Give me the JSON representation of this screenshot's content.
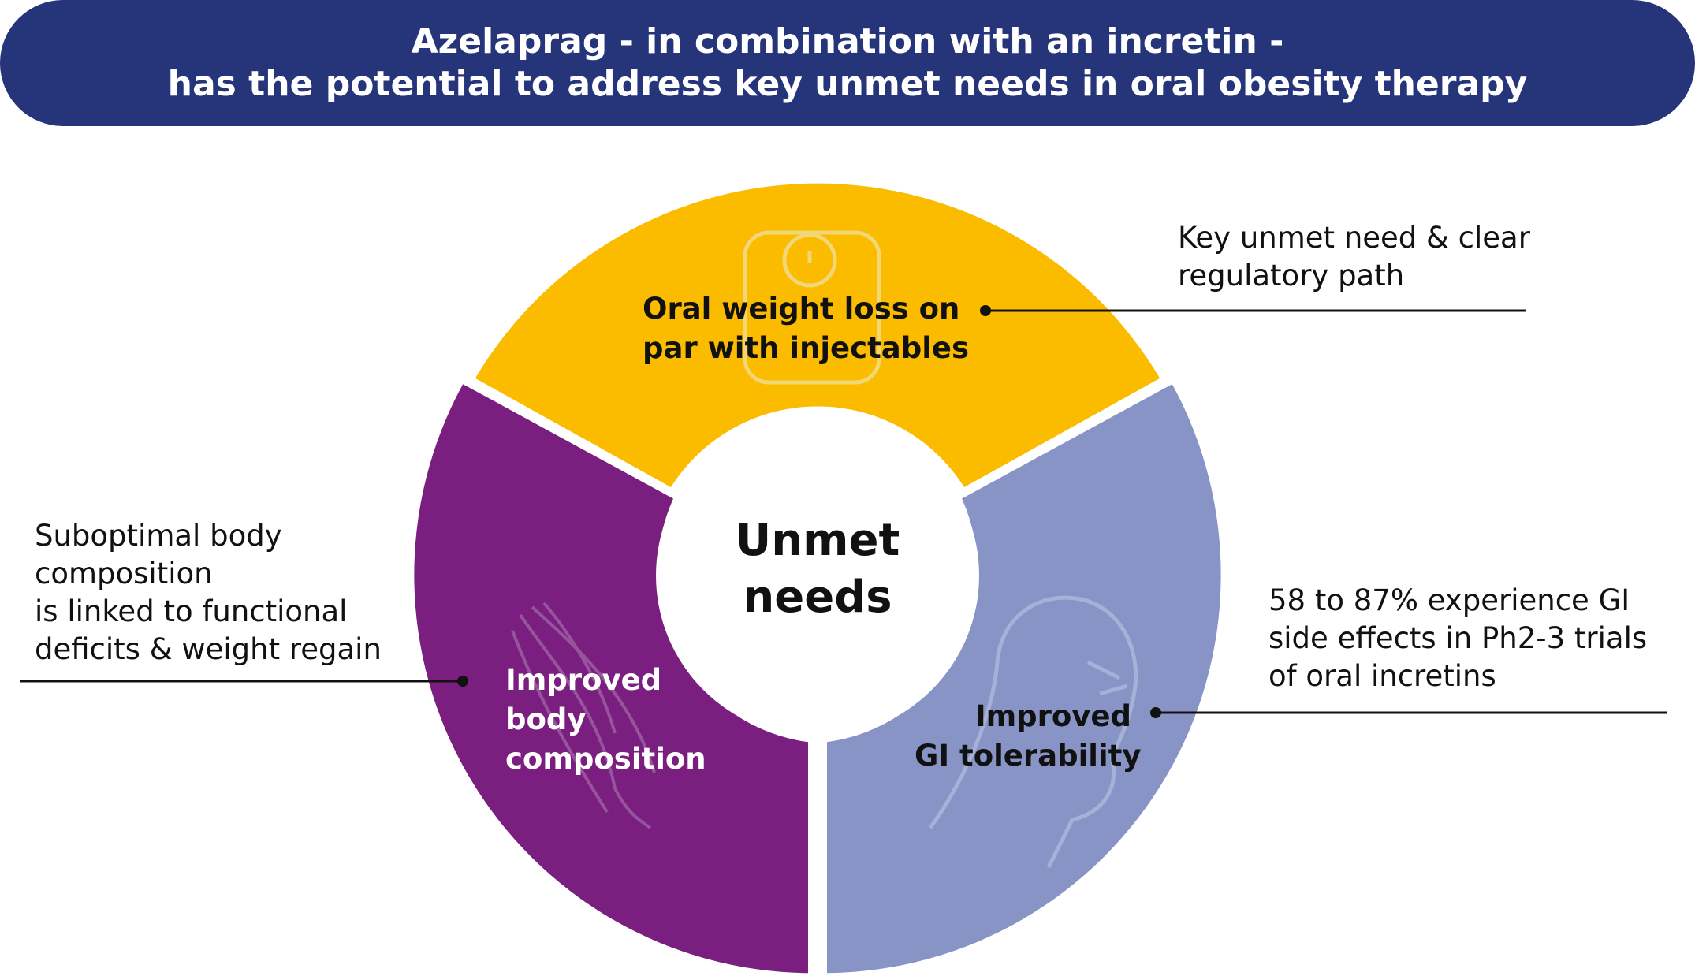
{
  "header": {
    "line1": "Azelaprag - in combination with an incretin -",
    "line2": "has the potential to address key unmet needs in oral obesity therapy"
  },
  "center": {
    "line1": "Unmet",
    "line2": "needs"
  },
  "segments": {
    "top": {
      "line1": "Oral weight loss on",
      "line2": "par with injectables",
      "color": "#fbbc00",
      "icon": "scale-icon"
    },
    "left": {
      "line1": "Improved",
      "line2": "body",
      "line3": "composition",
      "color": "#7a1f7f",
      "icon": "muscle-icon"
    },
    "right": {
      "line1": "Improved",
      "line2": "GI tolerability",
      "color": "#8794c5",
      "icon": "nausea-head-icon"
    }
  },
  "notes": {
    "top_right": {
      "line1": "Key unmet need & clear",
      "line2": "regulatory path"
    },
    "left": {
      "line1": "Suboptimal body",
      "line2": "composition",
      "line3": "is linked to functional",
      "line4": "deficits & weight regain"
    },
    "right": {
      "line1": "58 to 87% experience GI",
      "line2": "side effects in Ph2-3 trials",
      "line3": "of oral incretins"
    }
  },
  "colors": {
    "banner": "#26347a",
    "connector": "#111111"
  }
}
